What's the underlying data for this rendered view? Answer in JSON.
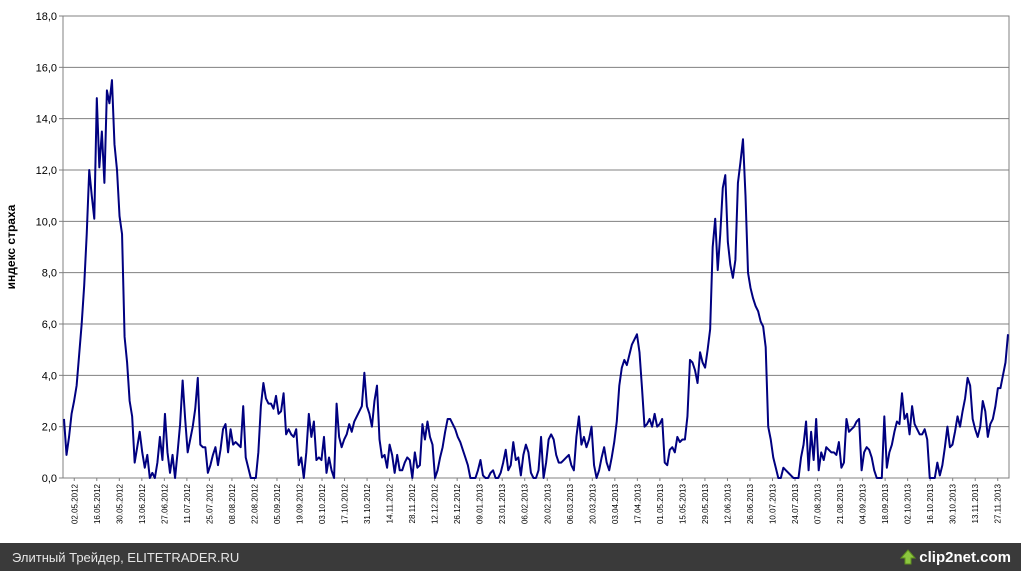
{
  "footer": {
    "caption": "Элитный Трейдер, ELITETRADER.RU",
    "logo_text": "clip2net.com",
    "logo_icon": "up-arrow-icon"
  },
  "colors": {
    "line": "#000080",
    "grid": "#808080",
    "footer_bg": "#3a3a3a",
    "logo_accent": "#8cc63f"
  },
  "chart_data": {
    "type": "line",
    "title": "",
    "ylabel": "индекс страха",
    "xlabel": "",
    "ylim": [
      0,
      18
    ],
    "yticks": [
      "0,0",
      "2,0",
      "4,0",
      "6,0",
      "8,0",
      "10,0",
      "12,0",
      "14,0",
      "16,0",
      "18,0"
    ],
    "grid": true,
    "legend": "none",
    "xticks": [
      "02.05.2012",
      "16.05.2012",
      "30.05.2012",
      "13.06.2012",
      "27.06.2012",
      "11.07.2012",
      "25.07.2012",
      "08.08.2012",
      "22.08.2012",
      "05.09.2012",
      "19.09.2012",
      "03.10.2012",
      "17.10.2012",
      "31.10.2012",
      "14.11.2012",
      "28.11.2012",
      "12.12.2012",
      "26.12.2012",
      "09.01.2013",
      "23.01.2013",
      "06.02.2013",
      "20.02.2013",
      "06.03.2013",
      "20.03.2013",
      "03.04.2013",
      "17.04.2013",
      "01.05.2013",
      "15.05.2013",
      "29.05.2013",
      "12.06.2013",
      "26.06.2013",
      "10.07.2013",
      "24.07.2013",
      "07.08.2013",
      "21.08.2013",
      "04.09.2013",
      "18.09.2013",
      "02.10.2013",
      "16.10.2013",
      "30.10.2013",
      "13.11.2013",
      "27.11.2013"
    ],
    "series": [
      {
        "values": [
          2.3,
          0.9,
          1.6,
          2.5,
          3.0,
          3.6,
          4.8,
          6.0,
          7.5,
          9.5,
          12.0,
          11.0,
          10.1,
          14.8,
          12.1,
          13.5,
          11.5,
          15.1,
          14.6,
          15.5,
          13.0,
          12.0,
          10.2,
          9.5,
          5.5,
          4.5,
          3.0,
          2.4,
          0.6,
          1.2,
          1.8,
          1.0,
          0.4,
          0.9,
          0.0,
          0.2,
          0.0,
          0.6,
          1.6,
          0.7,
          2.5,
          1.0,
          0.2,
          0.9,
          0.0,
          1.0,
          2.1,
          3.8,
          2.3,
          1.0,
          1.5,
          2.0,
          2.7,
          3.9,
          1.3,
          1.2,
          1.2,
          0.2,
          0.5,
          0.9,
          1.2,
          0.5,
          1.1,
          1.9,
          2.1,
          1.0,
          1.9,
          1.3,
          1.4,
          1.3,
          1.2,
          2.8,
          0.8,
          0.4,
          0.0,
          0.0,
          0.0,
          1.0,
          2.8,
          3.7,
          3.1,
          2.9,
          2.9,
          2.7,
          3.2,
          2.5,
          2.6,
          3.3,
          1.7,
          1.9,
          1.7,
          1.6,
          1.9,
          0.5,
          0.8,
          0.0,
          1.0,
          2.5,
          1.6,
          2.2,
          0.7,
          0.8,
          0.7,
          1.6,
          0.2,
          0.8,
          0.3,
          0.0,
          2.9,
          1.6,
          1.2,
          1.5,
          1.7,
          2.1,
          1.8,
          2.2,
          2.4,
          2.6,
          2.8,
          4.1,
          2.8,
          2.5,
          2.0,
          3.0,
          3.6,
          1.5,
          0.8,
          0.9,
          0.4,
          1.3,
          0.9,
          0.2,
          0.9,
          0.3,
          0.3,
          0.6,
          0.8,
          0.7,
          0.0,
          1.0,
          0.4,
          0.5,
          2.1,
          1.5,
          2.2,
          1.6,
          1.3,
          0.0,
          0.3,
          0.8,
          1.2,
          1.8,
          2.3,
          2.3,
          2.1,
          1.9,
          1.6,
          1.4,
          1.1,
          0.8,
          0.5,
          0.0,
          0.0,
          0.0,
          0.3,
          0.7,
          0.1,
          0.0,
          0.0,
          0.2,
          0.3,
          0.0,
          0.0,
          0.2,
          0.6,
          1.1,
          0.3,
          0.5,
          1.4,
          0.7,
          0.8,
          0.1,
          0.9,
          1.3,
          1.0,
          0.2,
          0.0,
          0.0,
          0.3,
          1.6,
          0.0,
          0.6,
          1.5,
          1.7,
          1.5,
          0.9,
          0.6,
          0.6,
          0.7,
          0.8,
          0.9,
          0.5,
          0.3,
          1.6,
          2.4,
          1.3,
          1.6,
          1.2,
          1.5,
          2.0,
          0.5,
          0.0,
          0.3,
          0.8,
          1.2,
          0.6,
          0.3,
          0.8,
          1.4,
          2.2,
          3.6,
          4.3,
          4.6,
          4.4,
          4.8,
          5.2,
          5.4,
          5.6,
          4.9,
          3.5,
          2.0,
          2.1,
          2.3,
          2.0,
          2.5,
          2.0,
          2.1,
          2.3,
          0.6,
          0.5,
          1.1,
          1.2,
          1.0,
          1.6,
          1.4,
          1.5,
          1.5,
          2.4,
          4.6,
          4.5,
          4.2,
          3.7,
          4.9,
          4.5,
          4.3,
          5.0,
          5.8,
          9.0,
          10.1,
          8.1,
          9.5,
          11.3,
          11.8,
          9.2,
          8.3,
          7.8,
          8.5,
          11.5,
          12.3,
          13.2,
          11.0,
          8.0,
          7.4,
          7.0,
          6.7,
          6.5,
          6.1,
          5.9,
          5.1,
          2.0,
          1.5,
          0.8,
          0.4,
          0.0,
          0.0,
          0.4,
          0.3,
          0.2,
          0.1,
          0.0,
          0.0,
          0.0,
          0.8,
          1.3,
          2.2,
          0.3,
          1.8,
          0.7,
          2.3,
          0.3,
          1.0,
          0.7,
          1.2,
          1.1,
          1.0,
          1.0,
          0.9,
          1.4,
          0.4,
          0.6,
          2.3,
          1.8,
          1.9,
          2.0,
          2.2,
          2.3,
          0.3,
          1.0,
          1.2,
          1.1,
          0.8,
          0.3,
          0.0,
          0.0,
          0.0,
          2.4,
          0.4,
          1.0,
          1.3,
          1.8,
          2.2,
          2.1,
          3.3,
          2.3,
          2.5,
          1.7,
          2.8,
          2.1,
          1.9,
          1.7,
          1.7,
          1.9,
          1.5,
          0.0,
          0.0,
          0.0,
          0.6,
          0.1,
          0.5,
          1.2,
          2.0,
          1.2,
          1.3,
          1.8,
          2.4,
          2.0,
          2.6,
          3.1,
          3.9,
          3.6,
          2.3,
          1.9,
          1.6,
          2.0,
          3.0,
          2.6,
          1.6,
          2.1,
          2.3,
          2.8,
          3.5,
          3.5,
          4.0,
          4.5,
          5.6
        ]
      }
    ]
  }
}
